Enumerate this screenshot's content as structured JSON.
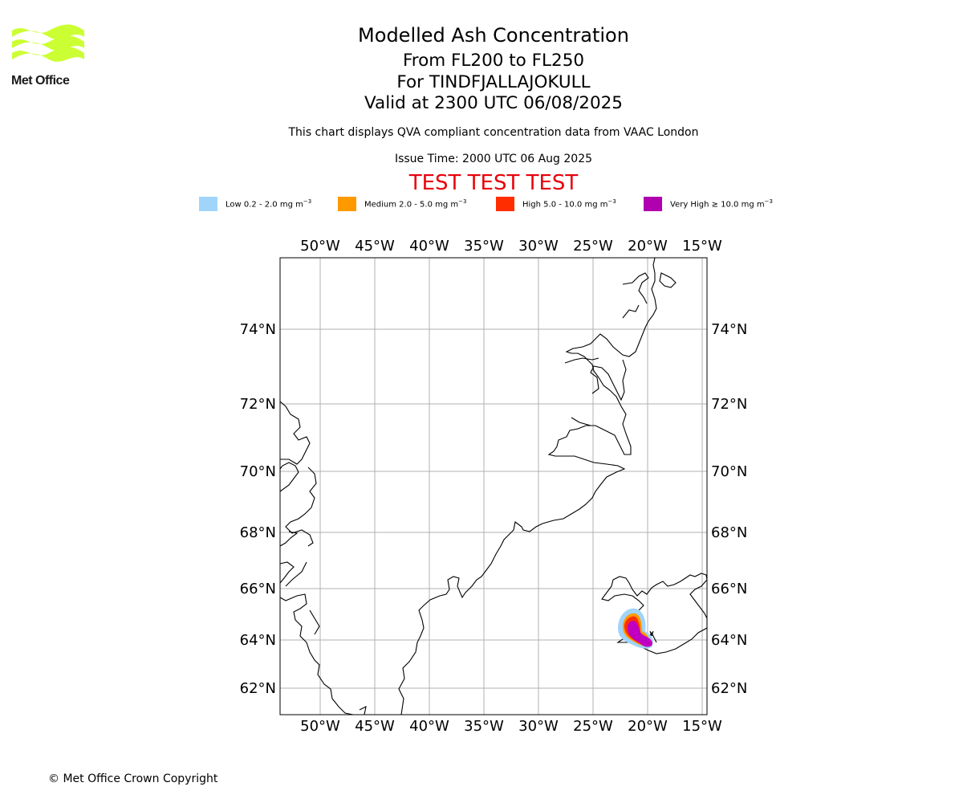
{
  "logo": {
    "text": "Met Office",
    "color": "#ccff33"
  },
  "title": {
    "line1": "Modelled Ash Concentration",
    "line2": "From FL200 to FL250",
    "line3": "For TINDFJALLAJOKULL",
    "line4": "Valid at 2300 UTC 06/08/2025"
  },
  "subtitle": "This chart displays QVA compliant concentration data from VAAC London",
  "issue_time": "Issue Time: 2000 UTC 06 Aug 2025",
  "test_banner": "TEST TEST TEST",
  "legend": [
    {
      "label": "Low 0.2 - 2.0 mg m",
      "color": "#a0d4fa"
    },
    {
      "label": "Medium 2.0 - 5.0 mg m",
      "color": "#ff9900"
    },
    {
      "label": "High 5.0 - 10.0 mg m",
      "color": "#ff2d00"
    },
    {
      "label": "Very High ≥ 10.0 mg m",
      "color": "#b000b0"
    }
  ],
  "legend_unit_exponent": "−3",
  "map": {
    "lon_ticks": [
      "50°W",
      "45°W",
      "40°W",
      "35°W",
      "30°W",
      "25°W",
      "20°W",
      "15°W"
    ],
    "lat_ticks": [
      "74°N",
      "72°N",
      "70°N",
      "68°N",
      "66°N",
      "64°N",
      "62°N"
    ],
    "volcano": "TINDFJALLAJOKULL"
  },
  "copyright": "© Met Office Crown Copyright"
}
